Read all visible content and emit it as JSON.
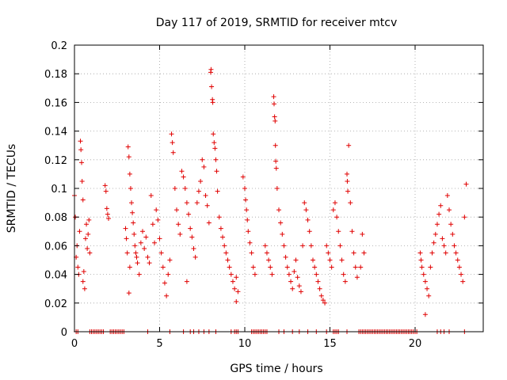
{
  "chart_data": {
    "type": "scatter",
    "title": "Day 117 of 2019, SRMTID for receiver mtcv",
    "xlabel": "GPS time / hours",
    "ylabel": "SRMTID / TECUs",
    "xlim": [
      0,
      24
    ],
    "ylim": [
      0,
      0.2
    ],
    "x_ticks": [
      {
        "value": 0,
        "label": "0"
      },
      {
        "value": 5,
        "label": "5"
      },
      {
        "value": 10,
        "label": "10"
      },
      {
        "value": 15,
        "label": "15"
      },
      {
        "value": 20,
        "label": "20"
      }
    ],
    "y_ticks": [
      {
        "value": 0,
        "label": "0"
      },
      {
        "value": 0.02,
        "label": "0.02"
      },
      {
        "value": 0.04,
        "label": "0.04"
      },
      {
        "value": 0.06,
        "label": "0.06"
      },
      {
        "value": 0.08,
        "label": "0.08"
      },
      {
        "value": 0.1,
        "label": "0.1"
      },
      {
        "value": 0.12,
        "label": "0.12"
      },
      {
        "value": 0.14,
        "label": "0.14"
      },
      {
        "value": 0.16,
        "label": "0.16"
      },
      {
        "value": 0.18,
        "label": "0.18"
      },
      {
        "value": 0.2,
        "label": "0.2"
      }
    ],
    "grid": true,
    "marker": "+",
    "series_color": "#e00000",
    "series": [
      {
        "name": "SRMTID",
        "points": [
          [
            0.0,
            0.095
          ],
          [
            0.05,
            0.08
          ],
          [
            0.1,
            0.052
          ],
          [
            0.15,
            0.06
          ],
          [
            0.2,
            0.045
          ],
          [
            0.25,
            0.04
          ],
          [
            0.3,
            0.07
          ],
          [
            0.35,
            0.133
          ],
          [
            0.38,
            0.127
          ],
          [
            0.42,
            0.118
          ],
          [
            0.45,
            0.105
          ],
          [
            0.5,
            0.092
          ],
          [
            0.5,
            0.035
          ],
          [
            0.55,
            0.042
          ],
          [
            0.6,
            0.03
          ],
          [
            0.65,
            0.065
          ],
          [
            0.7,
            0.075
          ],
          [
            0.75,
            0.058
          ],
          [
            0.8,
            0.068
          ],
          [
            0.85,
            0.078
          ],
          [
            0.9,
            0.055
          ],
          [
            1.8,
            0.102
          ],
          [
            1.85,
            0.098
          ],
          [
            1.9,
            0.086
          ],
          [
            1.95,
            0.082
          ],
          [
            2.0,
            0.079
          ],
          [
            3.0,
            0.072
          ],
          [
            3.05,
            0.065
          ],
          [
            3.1,
            0.055
          ],
          [
            3.15,
            0.129
          ],
          [
            3.2,
            0.122
          ],
          [
            3.25,
            0.11
          ],
          [
            3.3,
            0.1
          ],
          [
            3.35,
            0.09
          ],
          [
            3.4,
            0.083
          ],
          [
            3.45,
            0.076
          ],
          [
            3.5,
            0.068
          ],
          [
            3.55,
            0.06
          ],
          [
            3.6,
            0.055
          ],
          [
            3.65,
            0.052
          ],
          [
            3.7,
            0.048
          ],
          [
            3.2,
            0.027
          ],
          [
            3.25,
            0.045
          ],
          [
            3.8,
            0.04
          ],
          [
            3.9,
            0.062
          ],
          [
            4.0,
            0.07
          ],
          [
            4.1,
            0.058
          ],
          [
            4.2,
            0.066
          ],
          [
            4.3,
            0.052
          ],
          [
            4.4,
            0.048
          ],
          [
            4.5,
            0.095
          ],
          [
            4.6,
            0.075
          ],
          [
            4.7,
            0.062
          ],
          [
            4.8,
            0.085
          ],
          [
            4.9,
            0.078
          ],
          [
            5.0,
            0.065
          ],
          [
            5.1,
            0.055
          ],
          [
            5.2,
            0.045
          ],
          [
            5.3,
            0.034
          ],
          [
            5.4,
            0.025
          ],
          [
            5.5,
            0.04
          ],
          [
            5.6,
            0.05
          ],
          [
            5.7,
            0.138
          ],
          [
            5.75,
            0.132
          ],
          [
            5.8,
            0.125
          ],
          [
            5.9,
            0.1
          ],
          [
            6.0,
            0.085
          ],
          [
            6.1,
            0.075
          ],
          [
            6.2,
            0.068
          ],
          [
            6.3,
            0.112
          ],
          [
            6.4,
            0.108
          ],
          [
            6.5,
            0.1
          ],
          [
            6.6,
            0.09
          ],
          [
            6.7,
            0.082
          ],
          [
            6.8,
            0.072
          ],
          [
            6.9,
            0.066
          ],
          [
            7.0,
            0.058
          ],
          [
            7.1,
            0.052
          ],
          [
            6.6,
            0.035
          ],
          [
            7.2,
            0.09
          ],
          [
            7.3,
            0.098
          ],
          [
            7.4,
            0.105
          ],
          [
            7.5,
            0.12
          ],
          [
            7.6,
            0.115
          ],
          [
            7.7,
            0.095
          ],
          [
            7.8,
            0.088
          ],
          [
            7.9,
            0.076
          ],
          [
            8.0,
            0.181
          ],
          [
            8.02,
            0.183
          ],
          [
            8.05,
            0.171
          ],
          [
            8.1,
            0.162
          ],
          [
            8.12,
            0.16
          ],
          [
            8.15,
            0.138
          ],
          [
            8.2,
            0.132
          ],
          [
            8.25,
            0.128
          ],
          [
            8.3,
            0.12
          ],
          [
            8.35,
            0.112
          ],
          [
            8.4,
            0.098
          ],
          [
            8.5,
            0.08
          ],
          [
            8.6,
            0.072
          ],
          [
            8.7,
            0.066
          ],
          [
            8.8,
            0.06
          ],
          [
            8.9,
            0.055
          ],
          [
            9.0,
            0.05
          ],
          [
            9.1,
            0.045
          ],
          [
            9.2,
            0.04
          ],
          [
            9.3,
            0.035
          ],
          [
            9.4,
            0.03
          ],
          [
            9.5,
            0.038
          ],
          [
            9.6,
            0.028
          ],
          [
            9.5,
            0.021
          ],
          [
            9.9,
            0.108
          ],
          [
            10.0,
            0.1
          ],
          [
            10.05,
            0.092
          ],
          [
            10.1,
            0.085
          ],
          [
            10.15,
            0.078
          ],
          [
            10.2,
            0.07
          ],
          [
            10.3,
            0.062
          ],
          [
            10.4,
            0.055
          ],
          [
            10.5,
            0.045
          ],
          [
            10.6,
            0.04
          ],
          [
            11.2,
            0.06
          ],
          [
            11.3,
            0.055
          ],
          [
            11.4,
            0.05
          ],
          [
            11.5,
            0.045
          ],
          [
            11.6,
            0.04
          ],
          [
            11.7,
            0.164
          ],
          [
            11.72,
            0.159
          ],
          [
            11.75,
            0.15
          ],
          [
            11.78,
            0.147
          ],
          [
            11.8,
            0.13
          ],
          [
            11.82,
            0.119
          ],
          [
            11.85,
            0.114
          ],
          [
            11.9,
            0.1
          ],
          [
            12.0,
            0.085
          ],
          [
            12.1,
            0.076
          ],
          [
            12.2,
            0.068
          ],
          [
            12.3,
            0.06
          ],
          [
            12.4,
            0.052
          ],
          [
            12.5,
            0.045
          ],
          [
            12.6,
            0.04
          ],
          [
            12.7,
            0.035
          ],
          [
            12.8,
            0.03
          ],
          [
            12.9,
            0.042
          ],
          [
            13.0,
            0.05
          ],
          [
            13.1,
            0.038
          ],
          [
            13.2,
            0.032
          ],
          [
            13.3,
            0.028
          ],
          [
            13.4,
            0.06
          ],
          [
            13.5,
            0.09
          ],
          [
            13.6,
            0.085
          ],
          [
            13.7,
            0.078
          ],
          [
            13.8,
            0.07
          ],
          [
            13.9,
            0.06
          ],
          [
            14.0,
            0.05
          ],
          [
            14.1,
            0.045
          ],
          [
            14.2,
            0.04
          ],
          [
            14.3,
            0.035
          ],
          [
            14.4,
            0.03
          ],
          [
            14.5,
            0.025
          ],
          [
            14.6,
            0.022
          ],
          [
            14.7,
            0.02
          ],
          [
            14.8,
            0.06
          ],
          [
            14.9,
            0.055
          ],
          [
            15.0,
            0.05
          ],
          [
            15.1,
            0.045
          ],
          [
            15.2,
            0.085
          ],
          [
            15.3,
            0.09
          ],
          [
            15.4,
            0.08
          ],
          [
            15.5,
            0.07
          ],
          [
            15.6,
            0.06
          ],
          [
            15.7,
            0.05
          ],
          [
            15.8,
            0.04
          ],
          [
            15.9,
            0.035
          ],
          [
            16.0,
            0.11
          ],
          [
            16.02,
            0.105
          ],
          [
            16.05,
            0.098
          ],
          [
            16.1,
            0.13
          ],
          [
            16.2,
            0.09
          ],
          [
            16.3,
            0.07
          ],
          [
            16.4,
            0.055
          ],
          [
            16.5,
            0.045
          ],
          [
            16.6,
            0.038
          ],
          [
            16.8,
            0.045
          ],
          [
            16.9,
            0.068
          ],
          [
            17.0,
            0.055
          ],
          [
            20.3,
            0.055
          ],
          [
            20.35,
            0.05
          ],
          [
            20.4,
            0.045
          ],
          [
            20.5,
            0.04
          ],
          [
            20.6,
            0.035
          ],
          [
            20.7,
            0.03
          ],
          [
            20.8,
            0.025
          ],
          [
            20.6,
            0.012
          ],
          [
            20.9,
            0.045
          ],
          [
            21.0,
            0.055
          ],
          [
            21.1,
            0.062
          ],
          [
            21.2,
            0.068
          ],
          [
            21.3,
            0.075
          ],
          [
            21.4,
            0.082
          ],
          [
            21.5,
            0.088
          ],
          [
            21.6,
            0.065
          ],
          [
            21.7,
            0.06
          ],
          [
            21.8,
            0.055
          ],
          [
            21.9,
            0.095
          ],
          [
            22.0,
            0.085
          ],
          [
            22.1,
            0.075
          ],
          [
            22.2,
            0.068
          ],
          [
            22.3,
            0.06
          ],
          [
            22.4,
            0.055
          ],
          [
            22.5,
            0.05
          ],
          [
            22.6,
            0.045
          ],
          [
            22.7,
            0.04
          ],
          [
            22.8,
            0.035
          ],
          [
            22.9,
            0.08
          ],
          [
            23.0,
            0.103
          ]
        ]
      }
    ],
    "zero_points_x": [
      0.1,
      0.2,
      0.9,
      1.0,
      1.1,
      1.2,
      1.3,
      1.4,
      1.5,
      1.6,
      1.7,
      2.1,
      2.2,
      2.3,
      2.4,
      2.5,
      2.6,
      2.7,
      2.8,
      2.9,
      4.3,
      5.6,
      6.4,
      6.8,
      7.0,
      7.3,
      7.6,
      7.9,
      8.3,
      9.2,
      9.4,
      9.5,
      9.6,
      10.4,
      10.5,
      10.6,
      10.7,
      10.8,
      10.9,
      11.0,
      11.1,
      11.2,
      11.3,
      12.0,
      12.3,
      12.8,
      13.2,
      13.7,
      14.2,
      14.8,
      15.2,
      15.3,
      15.4,
      15.5,
      16.0,
      16.7,
      16.8,
      16.9,
      17.0,
      17.1,
      17.2,
      17.3,
      17.4,
      17.5,
      17.6,
      17.7,
      17.8,
      17.9,
      18.0,
      18.1,
      18.2,
      18.3,
      18.4,
      18.5,
      18.6,
      18.7,
      18.8,
      18.9,
      19.0,
      19.1,
      19.2,
      19.3,
      19.4,
      19.5,
      19.6,
      19.7,
      19.8,
      19.9,
      20.0,
      20.1,
      21.3,
      21.5,
      21.7,
      22.0,
      22.9
    ]
  }
}
